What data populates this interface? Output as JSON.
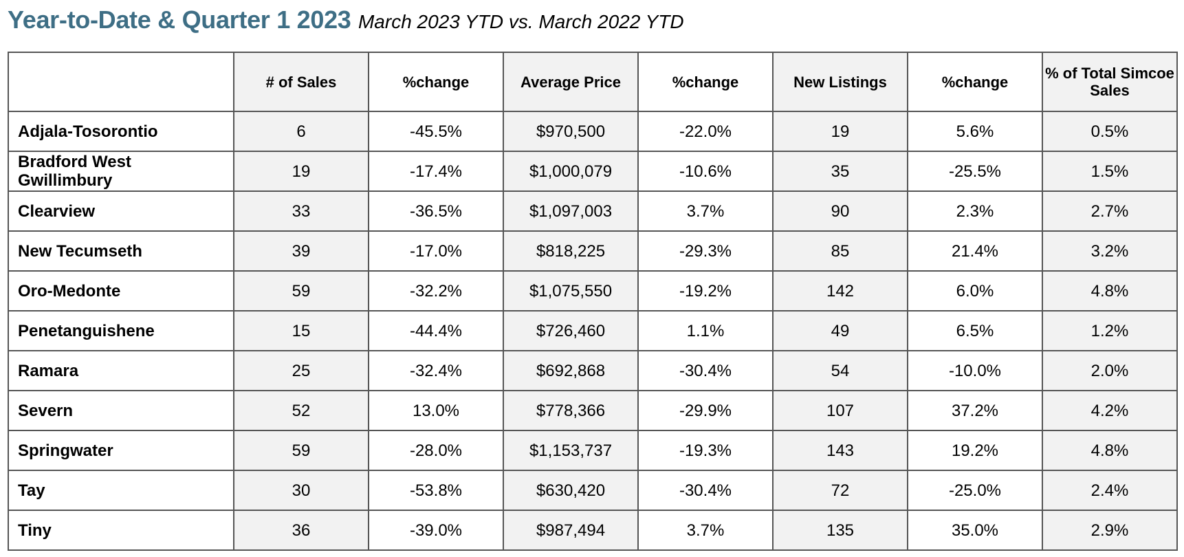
{
  "heading": {
    "title": "Year-to-Date & Quarter 1 2023",
    "subtitle": "March 2023 YTD vs. March 2022 YTD"
  },
  "table": {
    "columns": [
      "",
      "# of Sales",
      "%change",
      "Average Price",
      "%change",
      "New Listings",
      "%change",
      "% of Total Simcoe Sales"
    ],
    "rows": [
      {
        "name": "Adjala-Tosorontio",
        "values": [
          "6",
          "-45.5%",
          "$970,500",
          "-22.0%",
          "19",
          "5.6%",
          "0.5%"
        ]
      },
      {
        "name": "Bradford West Gwillimbury",
        "values": [
          "19",
          "-17.4%",
          "$1,000,079",
          "-10.6%",
          "35",
          "-25.5%",
          "1.5%"
        ]
      },
      {
        "name": "Clearview",
        "values": [
          "33",
          "-36.5%",
          "$1,097,003",
          "3.7%",
          "90",
          "2.3%",
          "2.7%"
        ]
      },
      {
        "name": "New Tecumseth",
        "values": [
          "39",
          "-17.0%",
          "$818,225",
          "-29.3%",
          "85",
          "21.4%",
          "3.2%"
        ]
      },
      {
        "name": "Oro-Medonte",
        "values": [
          "59",
          "-32.2%",
          "$1,075,550",
          "-19.2%",
          "142",
          "6.0%",
          "4.8%"
        ]
      },
      {
        "name": "Penetanguishene",
        "values": [
          "15",
          "-44.4%",
          "$726,460",
          "1.1%",
          "49",
          "6.5%",
          "1.2%"
        ]
      },
      {
        "name": "Ramara",
        "values": [
          "25",
          "-32.4%",
          "$692,868",
          "-30.4%",
          "54",
          "-10.0%",
          "2.0%"
        ]
      },
      {
        "name": "Severn",
        "values": [
          "52",
          "13.0%",
          "$778,366",
          "-29.9%",
          "107",
          "37.2%",
          "4.2%"
        ]
      },
      {
        "name": "Springwater",
        "values": [
          "59",
          "-28.0%",
          "$1,153,737",
          "-19.3%",
          "143",
          "19.2%",
          "4.8%"
        ]
      },
      {
        "name": "Tay",
        "values": [
          "30",
          "-53.8%",
          "$630,420",
          "-30.4%",
          "72",
          "-25.0%",
          "2.4%"
        ]
      },
      {
        "name": "Tiny",
        "values": [
          "36",
          "-39.0%",
          "$987,494",
          "3.7%",
          "135",
          "35.0%",
          "2.9%"
        ]
      }
    ]
  },
  "colors": {
    "title": "#3e6e85",
    "shaded_cell": "#f2f2f2",
    "border": "#555555"
  }
}
